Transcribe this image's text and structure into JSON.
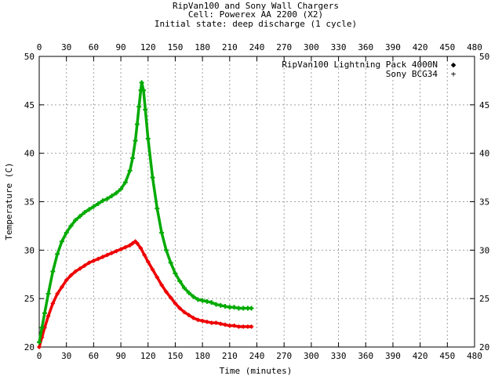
{
  "chart_data": {
    "type": "scatter",
    "title": "RipVan100 and Sony Wall Chargers",
    "subtitle": [
      "Cell: Powerex AA 2200 (X2)",
      "Initial state: deep discharge (1 cycle)"
    ],
    "xlabel": "Time (minutes)",
    "ylabel": "Temperature (C)",
    "xlim": [
      0,
      480
    ],
    "ylim": [
      20,
      50
    ],
    "xticks": [
      0,
      30,
      60,
      90,
      120,
      150,
      180,
      210,
      240,
      270,
      300,
      330,
      360,
      390,
      420,
      450,
      480
    ],
    "yticks": [
      20,
      25,
      30,
      35,
      40,
      45,
      50
    ],
    "grid": true,
    "legend_position": "top-right",
    "series": [
      {
        "name": "RipVan100 Lightning Pack 4000N",
        "marker": "◆",
        "color": "#ee0000",
        "x": [
          0,
          3,
          6,
          10,
          15,
          20,
          25,
          30,
          35,
          40,
          45,
          50,
          55,
          60,
          65,
          70,
          75,
          80,
          85,
          90,
          95,
          100,
          103,
          106,
          108,
          112,
          116,
          120,
          125,
          130,
          135,
          140,
          145,
          150,
          155,
          160,
          165,
          170,
          175,
          180,
          185,
          190,
          195,
          200,
          205,
          210,
          215,
          220,
          225,
          230,
          234
        ],
        "y": [
          20.0,
          21.0,
          22.0,
          23.2,
          24.5,
          25.5,
          26.2,
          26.9,
          27.4,
          27.8,
          28.1,
          28.4,
          28.7,
          28.9,
          29.1,
          29.3,
          29.5,
          29.7,
          29.9,
          30.1,
          30.3,
          30.5,
          30.7,
          30.9,
          30.7,
          30.2,
          29.5,
          28.8,
          28.0,
          27.2,
          26.4,
          25.7,
          25.1,
          24.5,
          24.0,
          23.6,
          23.3,
          23.0,
          22.8,
          22.7,
          22.6,
          22.5,
          22.5,
          22.4,
          22.3,
          22.2,
          22.2,
          22.1,
          22.1,
          22.1,
          22.1
        ]
      },
      {
        "name": "Sony BCG34",
        "marker": "+",
        "color": "#00aa00",
        "x": [
          0,
          3,
          6,
          10,
          15,
          20,
          25,
          30,
          35,
          40,
          45,
          50,
          55,
          60,
          65,
          70,
          75,
          80,
          85,
          90,
          95,
          100,
          103,
          106,
          108,
          110,
          112,
          113,
          115,
          117,
          120,
          125,
          130,
          135,
          140,
          145,
          150,
          155,
          160,
          165,
          170,
          175,
          180,
          185,
          190,
          195,
          200,
          205,
          210,
          215,
          220,
          225,
          230,
          234
        ],
        "y": [
          20.5,
          22.0,
          23.5,
          25.5,
          27.8,
          29.6,
          30.9,
          31.8,
          32.5,
          33.1,
          33.5,
          33.9,
          34.2,
          34.5,
          34.8,
          35.1,
          35.3,
          35.6,
          35.9,
          36.3,
          37.0,
          38.2,
          39.5,
          41.3,
          43.0,
          44.8,
          46.5,
          47.3,
          46.5,
          44.5,
          41.5,
          37.5,
          34.3,
          31.8,
          30.0,
          28.7,
          27.6,
          26.8,
          26.1,
          25.6,
          25.2,
          24.9,
          24.8,
          24.7,
          24.6,
          24.4,
          24.3,
          24.2,
          24.1,
          24.1,
          24.0,
          24.0,
          24.0,
          24.0
        ]
      }
    ]
  }
}
